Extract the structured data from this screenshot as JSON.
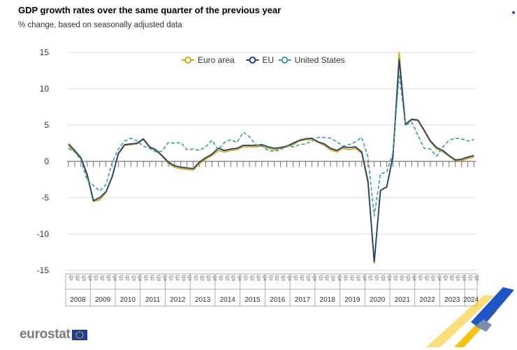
{
  "title": "GDP growth rates over the same quarter of the previous year",
  "subtitle": "% change, based on seasonally adjusted data",
  "logo_text": "eurostat",
  "colors": {
    "euro_area": "#d4a80f",
    "eu": "#1f3f7a",
    "us": "#3a9c9c",
    "grid": "#d9d9d9",
    "axis": "#555555",
    "flag": "#1b3f9b",
    "flag_star": "#f5d400"
  },
  "chart_data": {
    "type": "line",
    "title": "GDP growth rates over the same quarter of the previous year",
    "subtitle": "% change, based on seasonally adjusted data",
    "xlabel": "",
    "ylabel": "",
    "ylim": [
      -15,
      15
    ],
    "yticks": [
      15,
      10,
      5,
      0,
      -5,
      -10,
      -15
    ],
    "grid": true,
    "legend_position": "top-center",
    "years": [
      "2008",
      "2009",
      "2010",
      "2011",
      "2012",
      "2013",
      "2014",
      "2015",
      "2016",
      "2017",
      "2018",
      "2019",
      "2020",
      "2021",
      "2022",
      "2023",
      "2024"
    ],
    "quarter_labels": [
      "Q1",
      "Q2",
      "Q3",
      "Q4"
    ],
    "last_year_quarters": 2,
    "series": [
      {
        "name": "Euro area",
        "key": "euro_area",
        "style": "solid",
        "values": [
          2.2,
          1.3,
          0.4,
          -2.0,
          -5.5,
          -5.3,
          -4.3,
          -2.2,
          1.0,
          2.2,
          2.3,
          2.4,
          3.0,
          1.9,
          1.5,
          0.7,
          -0.3,
          -0.8,
          -1.0,
          -1.1,
          -1.2,
          -0.3,
          0.3,
          0.8,
          1.5,
          1.3,
          1.5,
          1.6,
          2.0,
          2.0,
          2.0,
          2.1,
          1.8,
          1.6,
          1.8,
          2.0,
          2.3,
          2.8,
          3.0,
          3.0,
          2.6,
          2.2,
          1.6,
          1.3,
          1.8,
          1.6,
          1.8,
          1.1,
          -3.0,
          -14.0,
          -4.0,
          -3.6,
          0.5,
          15.0,
          5.0,
          5.7,
          5.6,
          4.2,
          2.7,
          1.7,
          1.3,
          0.7,
          0.1,
          0.1,
          0.4,
          0.6
        ]
      },
      {
        "name": "EU",
        "key": "eu",
        "style": "solid",
        "values": [
          2.4,
          1.5,
          0.5,
          -1.8,
          -5.4,
          -5.0,
          -4.2,
          -2.1,
          1.1,
          2.3,
          2.4,
          2.5,
          3.1,
          2.0,
          1.6,
          0.8,
          -0.1,
          -0.6,
          -0.8,
          -0.9,
          -1.0,
          -0.1,
          0.5,
          1.0,
          1.8,
          1.5,
          1.7,
          1.8,
          2.2,
          2.2,
          2.2,
          2.3,
          2.0,
          1.8,
          1.9,
          2.1,
          2.5,
          2.9,
          3.1,
          3.2,
          2.7,
          2.4,
          1.8,
          1.5,
          2.0,
          1.9,
          2.0,
          1.3,
          -2.7,
          -13.8,
          -4.0,
          -3.5,
          0.7,
          14.0,
          5.1,
          5.8,
          5.7,
          4.3,
          2.8,
          1.9,
          1.5,
          0.8,
          0.2,
          0.3,
          0.6,
          0.8
        ]
      },
      {
        "name": "United States",
        "key": "us",
        "style": "dashed",
        "values": [
          1.8,
          1.3,
          0.2,
          -2.6,
          -3.3,
          -4.1,
          -3.2,
          -0.2,
          1.7,
          2.8,
          3.2,
          2.8,
          2.1,
          1.8,
          1.3,
          1.4,
          2.6,
          2.5,
          2.6,
          1.6,
          1.7,
          1.5,
          2.0,
          2.9,
          1.6,
          2.6,
          3.0,
          2.6,
          4.0,
          3.4,
          2.3,
          2.1,
          1.5,
          1.4,
          1.6,
          2.2,
          2.0,
          2.3,
          2.4,
          2.8,
          3.3,
          3.3,
          3.2,
          2.7,
          2.1,
          2.3,
          2.7,
          3.3,
          0.6,
          -7.5,
          -1.7,
          -1.5,
          1.2,
          12.0,
          5.0,
          5.4,
          3.6,
          1.8,
          1.7,
          0.7,
          2.0,
          2.9,
          3.2,
          3.1,
          2.8,
          3.0
        ]
      }
    ]
  }
}
